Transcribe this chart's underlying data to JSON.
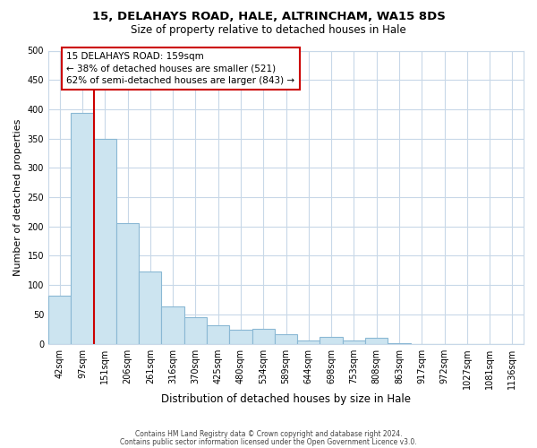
{
  "title": "15, DELAHAYS ROAD, HALE, ALTRINCHAM, WA15 8DS",
  "subtitle": "Size of property relative to detached houses in Hale",
  "xlabel": "Distribution of detached houses by size in Hale",
  "ylabel": "Number of detached properties",
  "bar_labels": [
    "42sqm",
    "97sqm",
    "151sqm",
    "206sqm",
    "261sqm",
    "316sqm",
    "370sqm",
    "425sqm",
    "480sqm",
    "534sqm",
    "589sqm",
    "644sqm",
    "698sqm",
    "753sqm",
    "808sqm",
    "863sqm",
    "917sqm",
    "972sqm",
    "1027sqm",
    "1081sqm",
    "1136sqm"
  ],
  "bar_values": [
    82,
    393,
    350,
    205,
    123,
    63,
    45,
    31,
    24,
    25,
    16,
    6,
    11,
    6,
    10,
    1,
    0,
    0,
    0,
    0,
    0
  ],
  "bar_color": "#cce4f0",
  "bar_edge_color": "#8ab8d4",
  "property_line_label": "15 DELAHAYS ROAD: 159sqm",
  "annotation_line1": "← 38% of detached houses are smaller (521)",
  "annotation_line2": "62% of semi-detached houses are larger (843) →",
  "box_color": "#ffffff",
  "box_edge_color": "#cc0000",
  "vline_color": "#cc0000",
  "vline_x_idx": 2,
  "ylim": [
    0,
    500
  ],
  "yticks": [
    0,
    50,
    100,
    150,
    200,
    250,
    300,
    350,
    400,
    450,
    500
  ],
  "footer1": "Contains HM Land Registry data © Crown copyright and database right 2024.",
  "footer2": "Contains public sector information licensed under the Open Government Licence v3.0.",
  "bg_color": "#ffffff",
  "grid_color": "#c8d8e8",
  "title_fontsize": 9.5,
  "subtitle_fontsize": 8.5,
  "ylabel_fontsize": 8,
  "xlabel_fontsize": 8.5,
  "tick_fontsize": 7,
  "annotation_fontsize": 7.5,
  "footer_fontsize": 5.5
}
